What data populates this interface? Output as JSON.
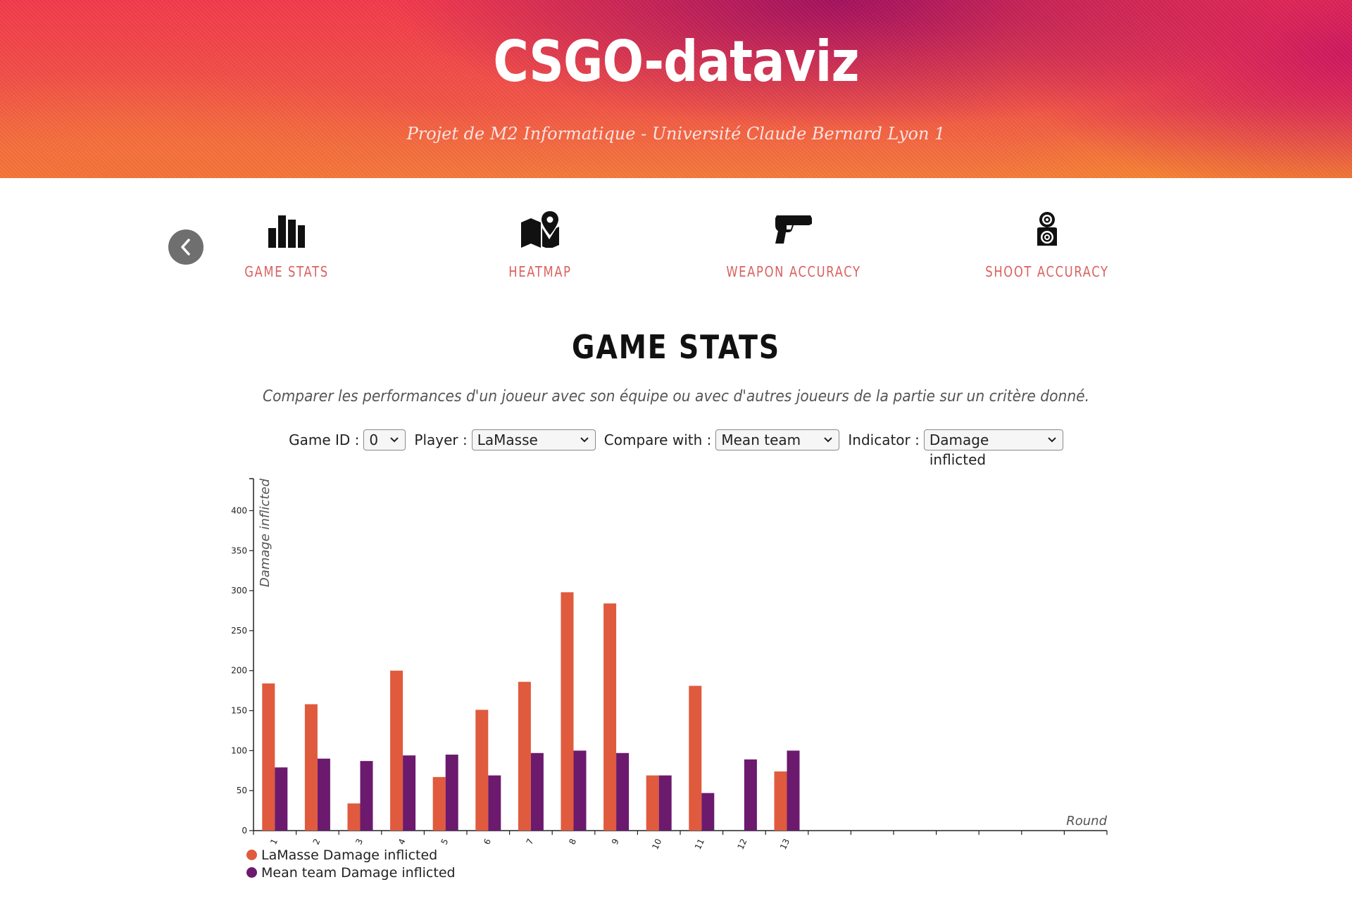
{
  "header": {
    "title": "CSGO-dataviz",
    "subtitle": "Projet de M2 Informatique - Université Claude Bernard Lyon 1"
  },
  "nav": {
    "items": [
      {
        "label": "GAME STATS",
        "icon": "bar-chart-icon"
      },
      {
        "label": "HEATMAP",
        "icon": "map-pin-icon"
      },
      {
        "label": "WEAPON ACCURACY",
        "icon": "pistol-icon"
      },
      {
        "label": "SHOOT ACCURACY",
        "icon": "target-icon"
      }
    ],
    "accent": "#d9625f"
  },
  "section": {
    "title": "GAME STATS",
    "description": "Comparer les performances d'un joueur avec son équipe ou avec d'autres joueurs de la partie sur un critère donné."
  },
  "controls": {
    "game_id_label": "Game ID :",
    "game_id_value": "0",
    "player_label": "Player :",
    "player_value": "LaMasse",
    "compare_label": "Compare with :",
    "compare_value": "Mean team",
    "indicator_label": "Indicator :",
    "indicator_value": "Damage inflicted"
  },
  "chart_data": {
    "type": "bar",
    "xlabel": "Round",
    "ylabel": "Damage inflicted",
    "categories": [
      "1",
      "2",
      "3",
      "4",
      "5",
      "6",
      "7",
      "8",
      "9",
      "10",
      "11",
      "12",
      "13"
    ],
    "empty_slots": 7,
    "ylim": [
      0,
      440
    ],
    "yticks": [
      0,
      50,
      100,
      150,
      200,
      250,
      300,
      350,
      400
    ],
    "series": [
      {
        "name": "LaMasse Damage inflicted",
        "color": "#e05a3e",
        "values": [
          184,
          158,
          34,
          200,
          67,
          151,
          186,
          298,
          284,
          69,
          181,
          0,
          74
        ]
      },
      {
        "name": "Mean team Damage inflicted",
        "color": "#6b1a6e",
        "values": [
          79,
          90,
          87,
          94,
          95,
          69,
          97,
          100,
          97,
          69,
          47,
          89,
          100
        ]
      }
    ],
    "legend": "bottom-left"
  }
}
